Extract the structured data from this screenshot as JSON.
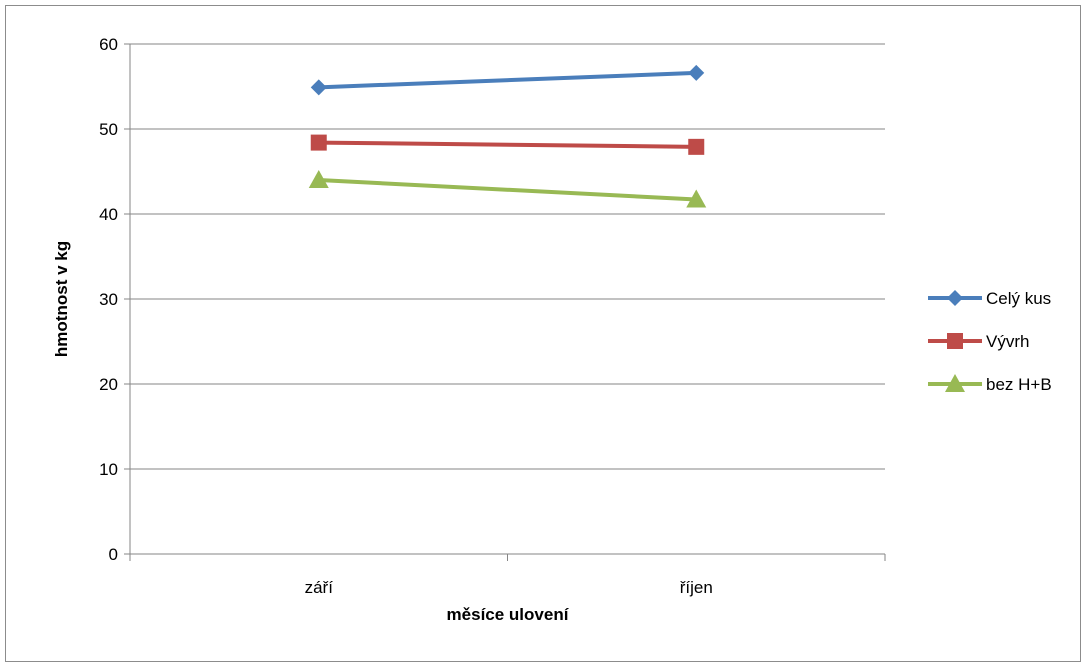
{
  "chart_data": {
    "type": "line",
    "categories": [
      "září",
      "říjen"
    ],
    "series": [
      {
        "name": "Celý kus",
        "values": [
          54.9,
          56.6
        ],
        "color": "#4a7ebb",
        "marker": "diamond"
      },
      {
        "name": "Vývrh",
        "values": [
          48.4,
          47.9
        ],
        "color": "#be4b48",
        "marker": "square"
      },
      {
        "name": "bez H+B",
        "values": [
          44.0,
          41.7
        ],
        "color": "#98b954",
        "marker": "triangle"
      }
    ],
    "xlabel": "měsíce ulovení",
    "ylabel": "hmotnost v kg",
    "ylim": [
      0,
      60
    ],
    "yticks": [
      0,
      10,
      20,
      30,
      40,
      50,
      60
    ],
    "grid": true,
    "legend": "right"
  }
}
